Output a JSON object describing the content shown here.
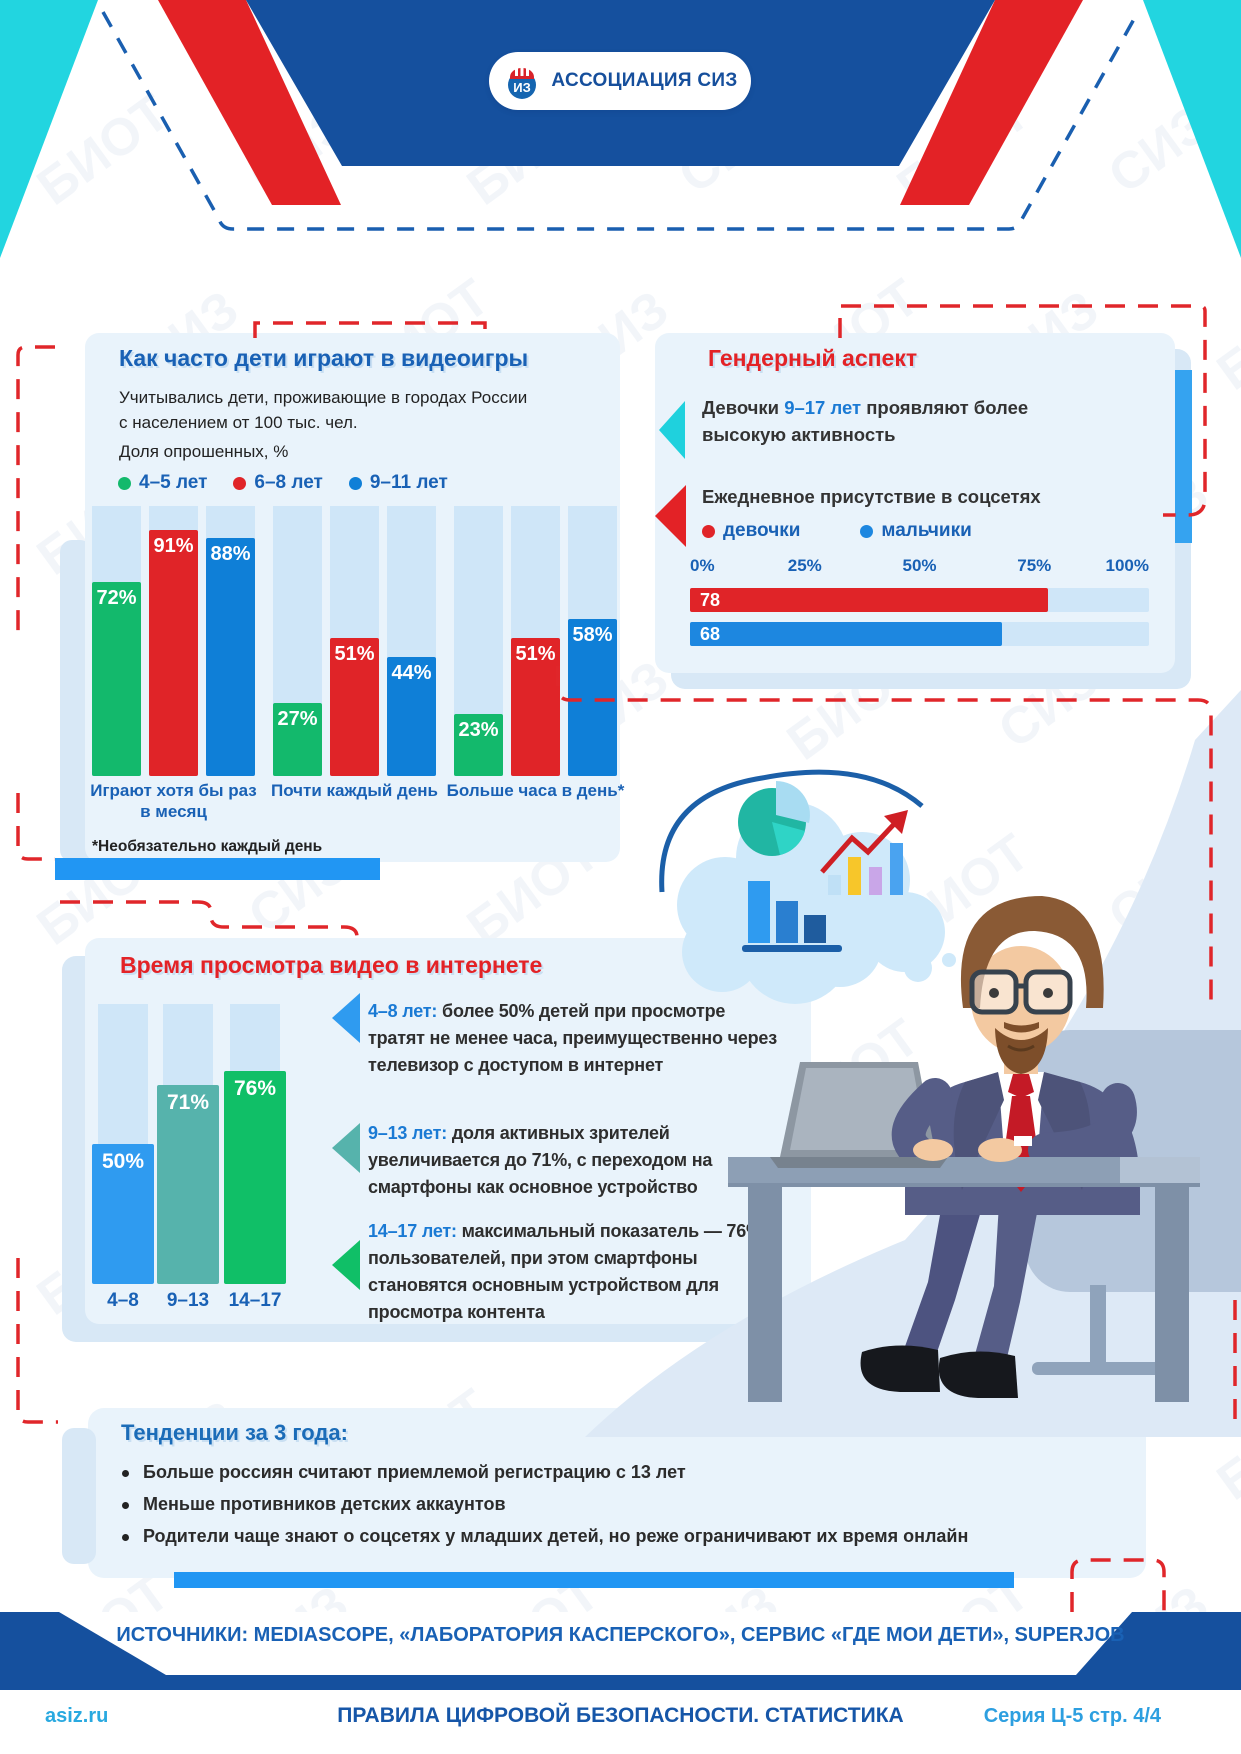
{
  "header": {
    "logo_text": "АССОЦИАЦИЯ СИЗ"
  },
  "watermark": {
    "words": [
      "БИОТ",
      "СИЗ"
    ]
  },
  "colors": {
    "accent_blue": "#2196f3",
    "dark_blue": "#15509e",
    "red": "#e32226",
    "cyan": "#22d5e0",
    "panel": "#e9f3fb"
  },
  "videogames_panel": {
    "title": "Как часто дети играют в видеоигры",
    "subtitle_lines": [
      "Учитывались дети, проживающие в городах России",
      "с населением от 100 тыс. чел.",
      "Доля опрошенных, %"
    ],
    "legend": [
      {
        "label": "4–5 лет",
        "color": "#13b96c"
      },
      {
        "label": "6–8 лет",
        "color": "#e02428"
      },
      {
        "label": "9–11 лет",
        "color": "#0f7fd7"
      }
    ],
    "footnote": "*Необязательно каждый день"
  },
  "gender_panel": {
    "title": "Гендерный аспект",
    "point1": {
      "pre": "Девочки ",
      "highlight": "9–17 лет",
      "post": " проявляют более",
      "line2": "высокую активность"
    },
    "point2_title": "Ежедневное присутствие в соцсетях",
    "legend": [
      {
        "label": "девочки",
        "color": "#e02428"
      },
      {
        "label": "мальчики",
        "color": "#1d87e0"
      }
    ]
  },
  "video_panel": {
    "title": "Время просмотра видео в интернете",
    "items": [
      {
        "lead": "4–8 лет:",
        "text": " более 50% детей при просмотре тратят не менее часа, преимущественно через телевизор с доступом в интернет",
        "color": "#2f9bf0"
      },
      {
        "lead": "9–13 лет:",
        "text": " доля активных зрителей увеличивается до 71%, с переходом на смартфоны как основное устройство",
        "color": "#56b3ac"
      },
      {
        "lead": "14–17 лет:",
        "text": " максимальный показатель — 76% пользователей, при этом смартфоны становятся основным устройством для просмотра контента",
        "color": "#10bf67"
      }
    ]
  },
  "trends_panel": {
    "title": "Тенденции за 3 года:",
    "bullets": [
      "Больше россиян считают приемлемой регистрацию с 13 лет",
      "Меньше противников детских аккаунтов",
      "Родители чаще знают о соцсетях у младших детей, но реже ограничивают их время онлайн"
    ]
  },
  "footer": {
    "sources": "ИСТОЧНИКИ: MEDIASCOPE, «ЛАБОРАТОРИЯ КАСПЕРСКОГО», СЕРВИС «ГДЕ МОИ ДЕТИ», SUPERJOB",
    "site": "asiz.ru",
    "title": "ПРАВИЛА ЦИФРОВОЙ БЕЗОПАСНОСТИ. СТАТИСТИКА",
    "series": "Серия Ц-5 стр. 4/4"
  },
  "chart_data": [
    {
      "type": "bar",
      "title": "Как часто дети играют в видеоигры",
      "ylabel": "Доля опрошенных, %",
      "unit": "%",
      "ylim": [
        0,
        100
      ],
      "legend_position": "top",
      "categories": [
        "Играют хотя бы раз в месяц",
        "Почти каждый день",
        "Больше часа в день*"
      ],
      "series": [
        {
          "name": "4–5 лет",
          "color": "#13b96c",
          "values": [
            72,
            27,
            23
          ]
        },
        {
          "name": "6–8 лет",
          "color": "#e02428",
          "values": [
            91,
            51,
            51
          ]
        },
        {
          "name": "9–11 лет",
          "color": "#0f7fd7",
          "values": [
            88,
            44,
            58
          ]
        }
      ]
    },
    {
      "type": "bar",
      "orientation": "horizontal",
      "title": "Ежедневное присутствие в соцсетях",
      "unit": "%",
      "xlim": [
        0,
        100
      ],
      "ticks": [
        "0%",
        "25%",
        "50%",
        "75%",
        "100%"
      ],
      "categories": [
        "девочки",
        "мальчики"
      ],
      "values": [
        78,
        68
      ],
      "colors": [
        "#e02428",
        "#1d87e0"
      ]
    },
    {
      "type": "bar",
      "title": "Время просмотра видео в интернете",
      "unit": "%",
      "ylim": [
        0,
        100
      ],
      "categories": [
        "4–8",
        "9–13",
        "14–17"
      ],
      "values": [
        50,
        71,
        76
      ],
      "colors": [
        "#2f9bf0",
        "#56b3ac",
        "#10bf67"
      ]
    }
  ]
}
